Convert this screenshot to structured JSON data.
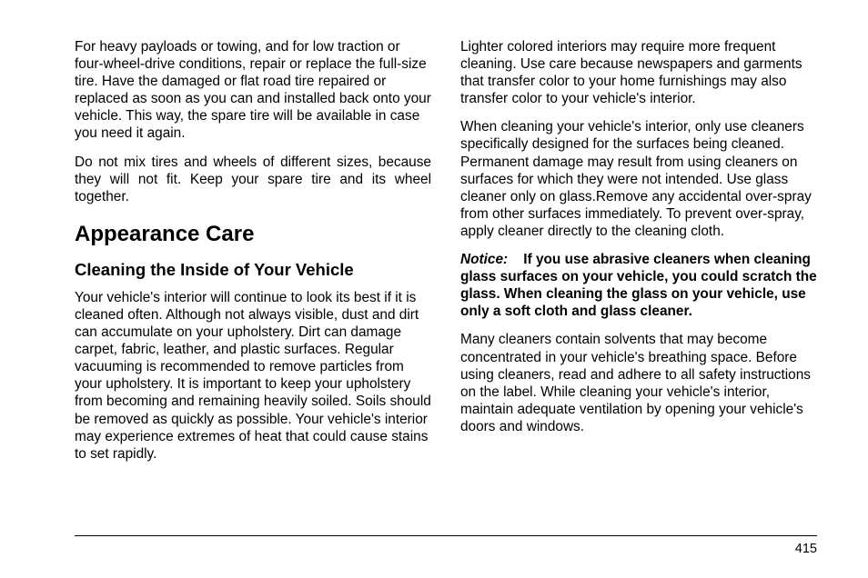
{
  "page": {
    "number": "415"
  },
  "left": {
    "p1": "For heavy payloads or towing, and for low traction or four-wheel-drive conditions, repair or replace the full-size tire. Have the damaged or flat road tire repaired or replaced as soon as you can and installed back onto your vehicle. This way, the spare tire will be available in case you need it again.",
    "p2": "Do not mix tires and wheels of different sizes, because they will not fit. Keep your spare tire and its wheel together.",
    "h1": "Appearance Care",
    "h2": "Cleaning the Inside of Your Vehicle",
    "p3": "Your vehicle's interior will continue to look its best if it is cleaned often. Although not always visible, dust and dirt can accumulate on your upholstery. Dirt can damage carpet, fabric, leather, and plastic surfaces. Regular vacuuming is recommended to remove particles from your upholstery. It is important to keep your upholstery from becoming and remaining heavily soiled. Soils should be removed as quickly as possible. Your vehicle's interior may experience extremes of heat that could cause stains to set rapidly."
  },
  "right": {
    "p1": "Lighter colored interiors may require more frequent cleaning. Use care because newspapers and garments that transfer color to your home furnishings may also transfer color to your vehicle's interior.",
    "p2": "When cleaning your vehicle's interior, only use cleaners specifically designed for the surfaces being cleaned. Permanent damage may result from using cleaners on surfaces for which they were not intended. Use glass cleaner only on glass.Remove any accidental over-spray from other surfaces immediately. To prevent over-spray, apply cleaner directly to the cleaning cloth.",
    "notice_label": "Notice:",
    "notice_body": "If you use abrasive cleaners when cleaning glass surfaces on your vehicle, you could scratch the glass. When cleaning the glass on your vehicle, use only a soft cloth and glass cleaner.",
    "p3": "Many cleaners contain solvents that may become concentrated in your vehicle's breathing space. Before using cleaners, read and adhere to all safety instructions on the label. While cleaning your vehicle's interior, maintain adequate ventilation by opening your vehicle's doors and windows."
  }
}
